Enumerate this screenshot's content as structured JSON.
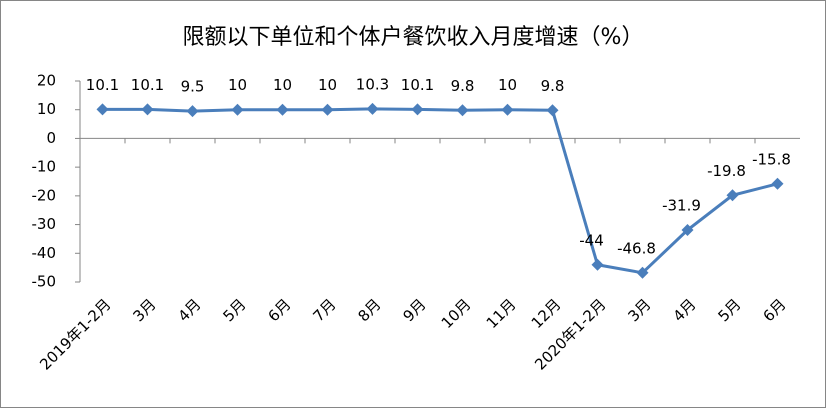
{
  "chart_data": {
    "type": "line",
    "title": "限额以下单位和个体户餐饮收入月度增速（%）",
    "categories": [
      "2019年1-2月",
      "3月",
      "4月",
      "5月",
      "6月",
      "7月",
      "8月",
      "9月",
      "10月",
      "11月",
      "12月",
      "2020年1-2月",
      "3月",
      "4月",
      "5月",
      "6月"
    ],
    "values": [
      10.1,
      10.1,
      9.5,
      10,
      10,
      10,
      10.3,
      10.1,
      9.8,
      10,
      9.8,
      -44,
      -46.8,
      -31.9,
      -19.8,
      -15.8
    ],
    "color": "#4a7ebb",
    "ylim": [
      -50,
      20
    ],
    "yticks": [
      -50,
      -40,
      -30,
      -20,
      -10,
      0,
      10,
      20
    ],
    "grid": false
  }
}
